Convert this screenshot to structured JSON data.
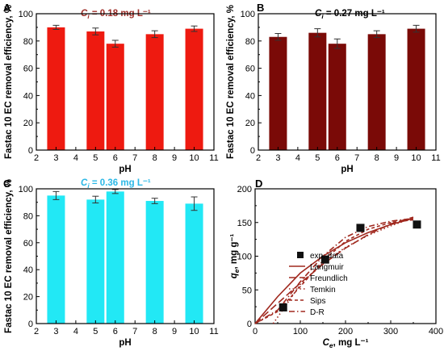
{
  "chart_data": [
    {
      "panel": "A",
      "type": "bar",
      "annotation": "C_i = 0.18 mg L⁻¹",
      "annotation_color": "#a0302a",
      "xlabel": "pH",
      "ylabel": "Fastac 10 EC removal efficiency, %",
      "xlim": [
        2,
        11
      ],
      "ylim": [
        0,
        100
      ],
      "xticks": [
        "2",
        "3",
        "4",
        "5",
        "6",
        "7",
        "8",
        "9",
        "10",
        "11"
      ],
      "yticks": [
        "0",
        "20",
        "40",
        "60",
        "80",
        "100"
      ],
      "bar_color": "#ee1a10",
      "x": [
        3,
        5,
        6,
        8,
        10
      ],
      "values": [
        90,
        87,
        78,
        85,
        89
      ],
      "errors": [
        1.5,
        2.5,
        2.5,
        2.5,
        2
      ]
    },
    {
      "panel": "B",
      "type": "bar",
      "annotation": "C_i = 0.27 mg L⁻¹",
      "annotation_color": "#000000",
      "xlabel": "pH",
      "ylabel": "Fastac 10 EC removal efficiency, %",
      "xlim": [
        2,
        11
      ],
      "ylim": [
        0,
        100
      ],
      "xticks": [
        "2",
        "3",
        "4",
        "5",
        "6",
        "7",
        "8",
        "9",
        "10",
        "11"
      ],
      "yticks": [
        "0",
        "20",
        "40",
        "60",
        "80",
        "100"
      ],
      "bar_color": "#7a0a07",
      "x": [
        3,
        5,
        6,
        8,
        10
      ],
      "values": [
        83,
        86,
        78,
        85,
        89
      ],
      "errors": [
        2.5,
        3,
        3.5,
        2.5,
        2.5
      ]
    },
    {
      "panel": "C",
      "type": "bar",
      "annotation": "C_i = 0.36 mg L⁻¹",
      "annotation_color": "#2bb8e6",
      "xlabel": "pH",
      "ylabel": "Fastac 10 EC removal efficiency, %",
      "xlim": [
        2,
        11
      ],
      "ylim": [
        0,
        100
      ],
      "xticks": [
        "2",
        "3",
        "4",
        "5",
        "6",
        "7",
        "8",
        "9",
        "10",
        "11"
      ],
      "yticks": [
        "0",
        "20",
        "40",
        "60",
        "80",
        "100"
      ],
      "bar_color": "#22e8f5",
      "x": [
        3,
        5,
        6,
        8,
        10
      ],
      "values": [
        95,
        92,
        98,
        91,
        89
      ],
      "errors": [
        3,
        2.5,
        1.5,
        2,
        5
      ]
    },
    {
      "panel": "D",
      "type": "scatter",
      "xlabel": "C_e, mg L⁻¹",
      "ylabel": "q_e, mg g⁻¹",
      "xlim": [
        0,
        400
      ],
      "ylim": [
        0,
        200
      ],
      "xticks": [
        "0",
        "100",
        "200",
        "300",
        "400"
      ],
      "yticks": [
        "0",
        "50",
        "100",
        "150",
        "200"
      ],
      "points": {
        "name": "exp. data",
        "x": [
          62,
          155,
          233,
          358
        ],
        "y": [
          24,
          95,
          142,
          147
        ]
      },
      "fits": [
        {
          "name": "Langmuir",
          "style": "solid",
          "x": [
            0,
            50,
            100,
            150,
            200,
            250,
            300,
            350
          ],
          "y": [
            0,
            40,
            75,
            100,
            120,
            135,
            147,
            156
          ]
        },
        {
          "name": "Freundlich",
          "style": "longdash",
          "x": [
            0,
            50,
            100,
            150,
            200,
            250,
            300,
            350
          ],
          "y": [
            0,
            30,
            60,
            88,
            112,
            132,
            148,
            158
          ]
        },
        {
          "name": "Temkin",
          "style": "dot",
          "x": [
            40,
            100,
            150,
            200,
            250,
            300,
            350
          ],
          "y": [
            0,
            58,
            90,
            113,
            131,
            145,
            157
          ]
        },
        {
          "name": "Sips",
          "style": "shortdash",
          "x": [
            0,
            50,
            100,
            150,
            200,
            250,
            300,
            350
          ],
          "y": [
            0,
            18,
            55,
            93,
            122,
            140,
            150,
            154
          ]
        },
        {
          "name": "D-R",
          "style": "dashdot",
          "x": [
            0,
            50,
            100,
            150,
            200,
            250,
            300,
            350
          ],
          "y": [
            0,
            20,
            62,
            100,
            128,
            144,
            152,
            156
          ]
        }
      ],
      "fit_color": "#a0281e"
    }
  ]
}
